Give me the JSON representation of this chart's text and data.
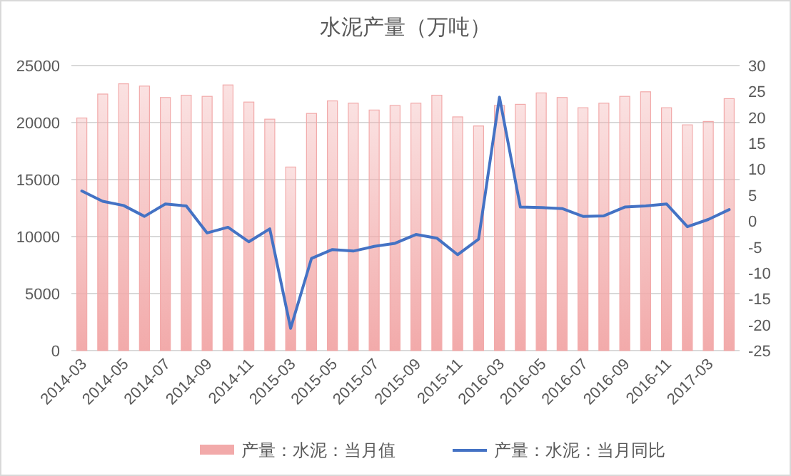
{
  "chart_data": {
    "type": "bar",
    "title": "水泥产量（万吨）",
    "categories": [
      "2014-03",
      null,
      "2014-05",
      null,
      "2014-07",
      null,
      "2014-09",
      null,
      "2014-11",
      null,
      "2015-03",
      null,
      "2015-05",
      null,
      "2015-07",
      null,
      "2015-09",
      null,
      "2015-11",
      null,
      "2016-03",
      null,
      "2016-05",
      null,
      "2016-07",
      null,
      "2016-09",
      null,
      "2016-11",
      null,
      "2017-03",
      null
    ],
    "series": [
      {
        "name": "产量：水泥：当月值",
        "color": "#f2aaaa",
        "values": [
          20400,
          22500,
          23400,
          23200,
          22200,
          22400,
          22300,
          23300,
          21800,
          20300,
          16100,
          20800,
          21900,
          21700,
          21100,
          21500,
          21700,
          22400,
          20500,
          19700,
          21500,
          21600,
          22600,
          22200,
          21300,
          21700,
          22300,
          22700,
          21300,
          19800,
          20100,
          22100
        ]
      },
      {
        "name": "产量：水泥：当月同比",
        "type": "line",
        "axis": "y2",
        "color": "#4472c4",
        "values": [
          5.8,
          3.8,
          3.0,
          0.9,
          3.3,
          2.9,
          -2.3,
          -1.2,
          -4.0,
          -1.5,
          -20.7,
          -7.2,
          -5.5,
          -5.8,
          -4.9,
          -4.3,
          -2.6,
          -3.3,
          -6.5,
          -3.5,
          23.9,
          2.7,
          2.6,
          2.4,
          0.9,
          1.0,
          2.7,
          2.9,
          3.3,
          -1.1,
          0.3,
          2.2
        ]
      }
    ],
    "ylim": [
      0,
      25000
    ],
    "yticks": [
      0,
      5000,
      10000,
      15000,
      20000,
      25000
    ],
    "y2lim": [
      -25,
      30
    ],
    "y2ticks": [
      -25,
      -20,
      -15,
      -10,
      -5,
      0,
      5,
      10,
      15,
      20,
      25,
      30
    ],
    "grid": "y",
    "legend": "bottom"
  }
}
